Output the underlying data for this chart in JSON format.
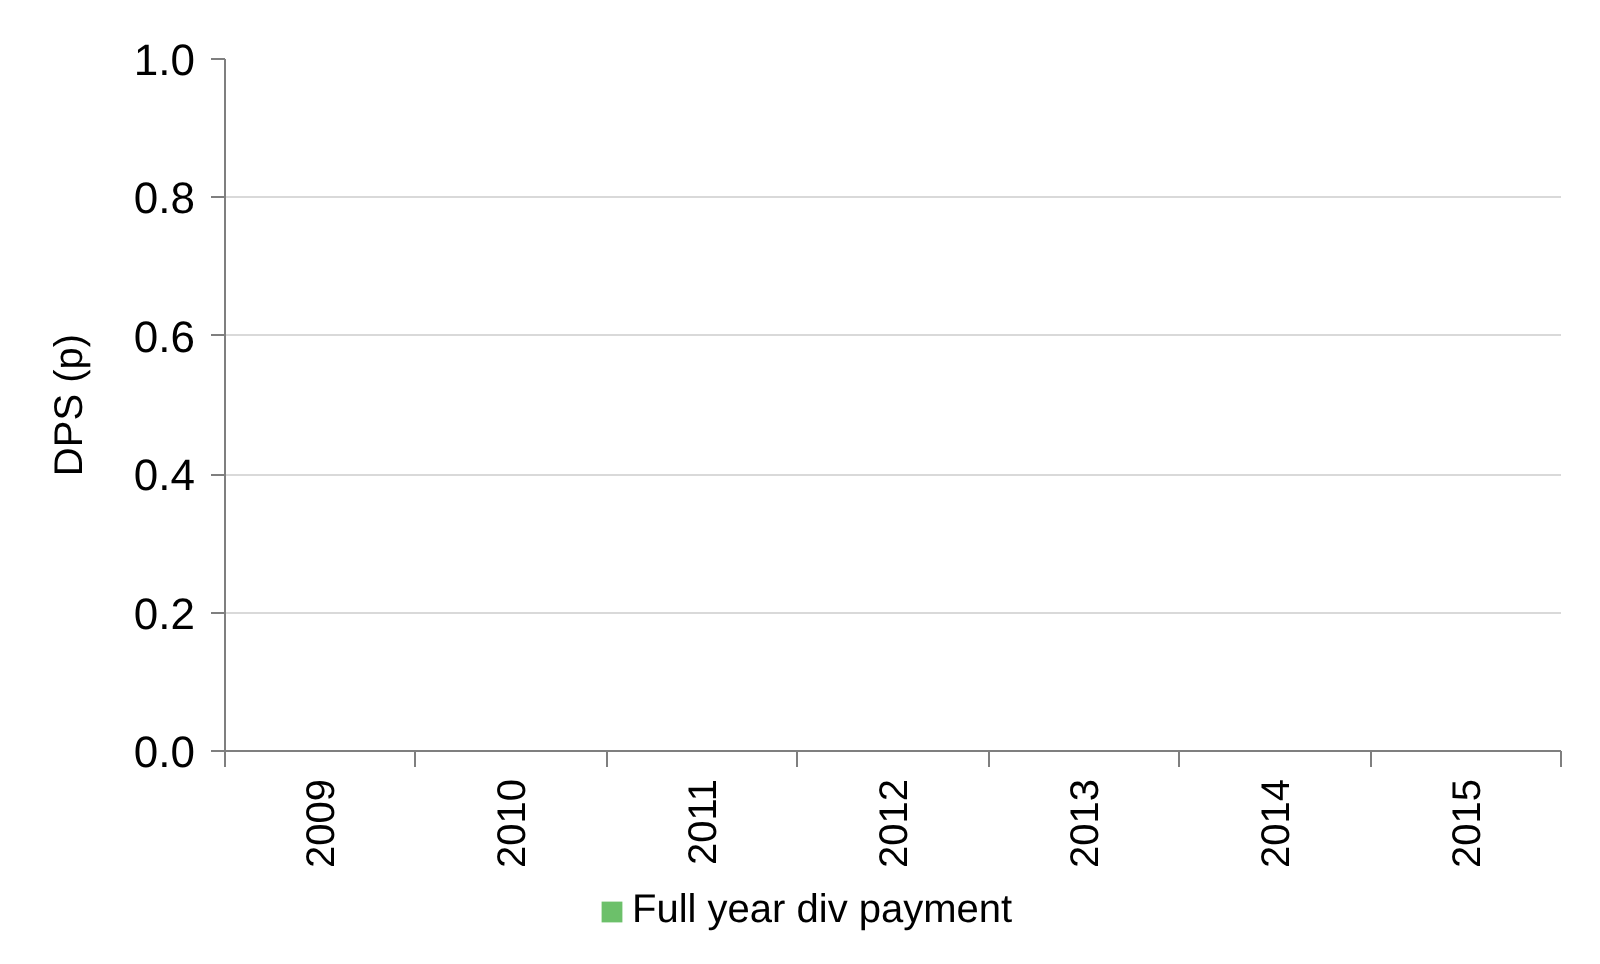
{
  "chart_data": {
    "type": "bar",
    "ylabel": "DPS (p)",
    "categories": [
      "2009",
      "2010",
      "2011",
      "2012",
      "2013",
      "2014",
      "2015"
    ],
    "series": [
      {
        "name": "Full year div payment",
        "color": "#6cc06a",
        "values": [
          0,
          0,
          0,
          0,
          0,
          0,
          0
        ]
      }
    ],
    "ylim": [
      0,
      1
    ],
    "yticks": [
      {
        "value": 0,
        "label": "0.0"
      },
      0.2,
      0.4,
      0.6,
      0.8,
      {
        "value": 1,
        "label": "1.0"
      }
    ],
    "grid": "y",
    "legend": "bottom"
  }
}
